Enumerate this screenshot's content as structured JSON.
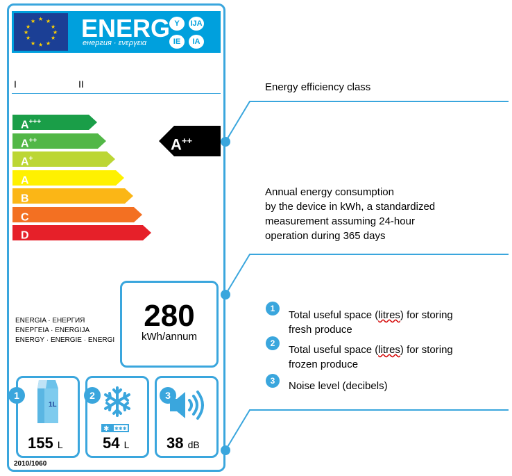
{
  "header": {
    "title": "ENERG",
    "subtitle": "енергия · ενεργεια",
    "lang_codes": [
      "Y",
      "IJA",
      "IE",
      "IA"
    ]
  },
  "roman_numerals": [
    "I",
    "II"
  ],
  "energy_classes": [
    {
      "letter": "A",
      "sup": "+++",
      "color": "#1a9e48"
    },
    {
      "letter": "A",
      "sup": "++",
      "color": "#52b747"
    },
    {
      "letter": "A",
      "sup": "+",
      "color": "#bcd634"
    },
    {
      "letter": "A",
      "sup": "",
      "color": "#fff100"
    },
    {
      "letter": "B",
      "sup": "",
      "color": "#fbb616"
    },
    {
      "letter": "C",
      "sup": "",
      "color": "#f37022"
    },
    {
      "letter": "D",
      "sup": "",
      "color": "#e62029"
    }
  ],
  "rating": {
    "letter": "A",
    "sup": "++"
  },
  "consumption": {
    "value": "280",
    "unit": "kWh/annum"
  },
  "energia_lines": [
    "ENERGIA · ЕНЕРГИЯ",
    "ΕΝΕΡΓΕΙΑ · ENERGIJA",
    "ENERGY · ENERGIE · ENERGI"
  ],
  "icons": [
    {
      "number": "1",
      "name": "fresh-volume",
      "value": "155",
      "unit": "L",
      "glyph": "milk-carton-icon"
    },
    {
      "number": "2",
      "name": "frozen-volume",
      "value": "54",
      "unit": "L",
      "glyph": "snowflake-icon"
    },
    {
      "number": "3",
      "name": "noise",
      "value": "38",
      "unit": "dB",
      "glyph": "speaker-icon"
    }
  ],
  "regulation": "2010/1060",
  "annotations": {
    "efficiency_class": "Energy efficiency class",
    "consumption_lines": [
      "Annual energy consumption",
      "by the device in kWh, a standardized",
      "measurement assuming 24-hour",
      "operation during 365 days"
    ],
    "legend": [
      {
        "number": "1",
        "before": "Total useful space (",
        "underlined": "litres",
        "after": ") for storing",
        "line2": "fresh produce"
      },
      {
        "number": "2",
        "before": "Total useful space (",
        "underlined": "litres",
        "after": ") for storing",
        "line2": "frozen produce"
      },
      {
        "number": "3",
        "before": "Noise level (decibels)",
        "underlined": "",
        "after": "",
        "line2": ""
      }
    ]
  },
  "colors": {
    "accent": "#3aa6dd",
    "header_blue": "#00a0dd",
    "eu_blue": "#1b3f95",
    "star_yellow": "#ffd200"
  }
}
